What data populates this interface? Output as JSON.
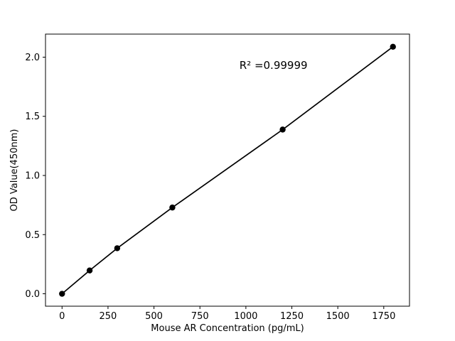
{
  "chart_data": {
    "type": "scatter",
    "title": "",
    "xlabel": "Mouse AR Concentration (pg/mL)",
    "ylabel": "OD Value(450nm)",
    "x": [
      0,
      150,
      300,
      600,
      1200,
      1800
    ],
    "y": [
      0.0,
      0.197,
      0.385,
      0.729,
      1.388,
      2.088
    ],
    "xlim": [
      -90,
      1890
    ],
    "ylim": [
      -0.105,
      2.195
    ],
    "xticks": [
      0,
      250,
      500,
      750,
      1000,
      1250,
      1500,
      1750
    ],
    "yticks": [
      0.0,
      0.5,
      1.0,
      1.5,
      2.0
    ],
    "annotation": {
      "text": "R² =0.99999",
      "x": 1150,
      "y": 1.9
    },
    "line_color": "#000000",
    "marker_color": "#000000",
    "background": "#ffffff",
    "grid": false,
    "legend": null
  }
}
